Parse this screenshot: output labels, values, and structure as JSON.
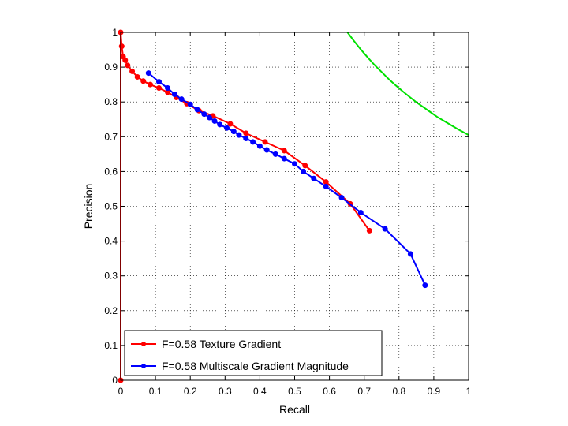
{
  "chart_data": {
    "type": "line",
    "xlabel": "Recall",
    "ylabel": "Precision",
    "xlim": [
      0,
      1
    ],
    "ylim": [
      0,
      1
    ],
    "xticks": [
      0,
      0.1,
      0.2,
      0.3,
      0.4,
      0.5,
      0.6,
      0.7,
      0.8,
      0.9,
      1
    ],
    "xtick_labels": [
      "0",
      "0.1",
      "0.2",
      "0.3",
      "0.4",
      "0.5",
      "0.6",
      "0.7",
      "0.8",
      "0.9",
      "1"
    ],
    "yticks": [
      0,
      0.1,
      0.2,
      0.3,
      0.4,
      0.5,
      0.6,
      0.7,
      0.8,
      0.9,
      1
    ],
    "ytick_labels": [
      "0",
      "0.1",
      "0.2",
      "0.3",
      "0.4",
      "0.5",
      "0.6",
      "0.7",
      "0.8",
      "0.9",
      "1"
    ],
    "grid": true,
    "legend_position": "bottom-left",
    "series": [
      {
        "name": "F=0.58 Texture Gradient",
        "color": "#ff0000",
        "x": [
          0.0,
          0.0,
          0.003,
          0.007,
          0.013,
          0.02,
          0.033,
          0.048,
          0.065,
          0.085,
          0.11,
          0.135,
          0.16,
          0.19,
          0.225,
          0.265,
          0.315,
          0.36,
          0.415,
          0.47,
          0.53,
          0.59,
          0.66,
          0.715
        ],
        "y": [
          0.0,
          1.0,
          0.96,
          0.93,
          0.92,
          0.905,
          0.888,
          0.872,
          0.86,
          0.85,
          0.84,
          0.828,
          0.813,
          0.795,
          0.775,
          0.76,
          0.737,
          0.71,
          0.685,
          0.66,
          0.617,
          0.57,
          0.507,
          0.43
        ]
      },
      {
        "name": "F=0.58 Multiscale Gradient Magnitude",
        "color": "#0000ff",
        "x": [
          0.08,
          0.11,
          0.135,
          0.155,
          0.175,
          0.2,
          0.22,
          0.24,
          0.255,
          0.27,
          0.285,
          0.305,
          0.325,
          0.34,
          0.36,
          0.38,
          0.4,
          0.42,
          0.445,
          0.47,
          0.5,
          0.525,
          0.555,
          0.59,
          0.635,
          0.69,
          0.76,
          0.833,
          0.875
        ],
        "y": [
          0.883,
          0.858,
          0.84,
          0.822,
          0.808,
          0.793,
          0.778,
          0.765,
          0.755,
          0.745,
          0.735,
          0.725,
          0.715,
          0.705,
          0.695,
          0.685,
          0.673,
          0.662,
          0.65,
          0.637,
          0.622,
          0.6,
          0.58,
          0.557,
          0.525,
          0.482,
          0.435,
          0.363,
          0.273
        ]
      },
      {
        "color": "#00e000",
        "marker": "none",
        "x": [
          0.652,
          0.67,
          0.69,
          0.71,
          0.73,
          0.75,
          0.77,
          0.79,
          0.81,
          0.83,
          0.85,
          0.87,
          0.89,
          0.91,
          0.93,
          0.95,
          0.97,
          1.0
        ],
        "y": [
          1.0,
          0.976,
          0.951,
          0.928,
          0.906,
          0.886,
          0.866,
          0.848,
          0.831,
          0.815,
          0.799,
          0.785,
          0.771,
          0.757,
          0.745,
          0.733,
          0.721,
          0.705
        ]
      }
    ]
  }
}
